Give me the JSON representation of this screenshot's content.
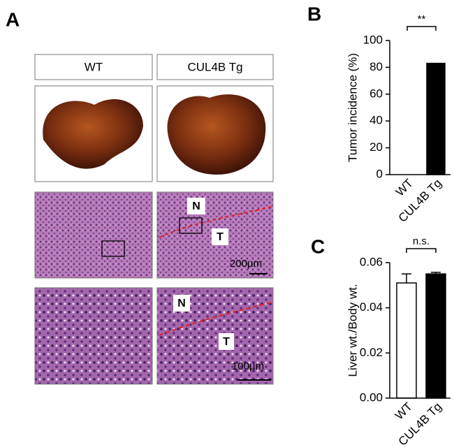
{
  "panel_a": {
    "label": "A",
    "columns": [
      "WT",
      "CUL4B Tg"
    ],
    "overview_marks": [
      "N",
      "T"
    ],
    "overview_scale": "200µm",
    "detail_marks": [
      "N",
      "T"
    ],
    "detail_scale": "100µm"
  },
  "chart_data": [
    {
      "type": "bar",
      "panel_label": "B",
      "y_label": "Tumor incidence (%)",
      "categories": [
        "WT",
        "CUL4B Tg"
      ],
      "values": [
        0,
        83
      ],
      "colors": [
        "#000000",
        "#000000"
      ],
      "ylim": [
        0,
        100
      ],
      "yticks": [
        0,
        20,
        40,
        60,
        80,
        100
      ],
      "significance": "**"
    },
    {
      "type": "bar",
      "panel_label": "C",
      "y_label": "Liver wt./Body wt.",
      "categories": [
        "WT",
        "CUL4B Tg"
      ],
      "values": [
        0.051,
        0.055
      ],
      "errors": [
        0.004,
        0.0007
      ],
      "colors": [
        "#ffffff",
        "#000000"
      ],
      "ylim": [
        0,
        0.06
      ],
      "yticks": [
        {
          "value": 0,
          "label": "0.00"
        },
        {
          "value": 0.02,
          "label": "0.02"
        },
        {
          "value": 0.04,
          "label": "0.04"
        },
        {
          "value": 0.06,
          "label": "0.06"
        }
      ],
      "significance": "n.s."
    }
  ]
}
